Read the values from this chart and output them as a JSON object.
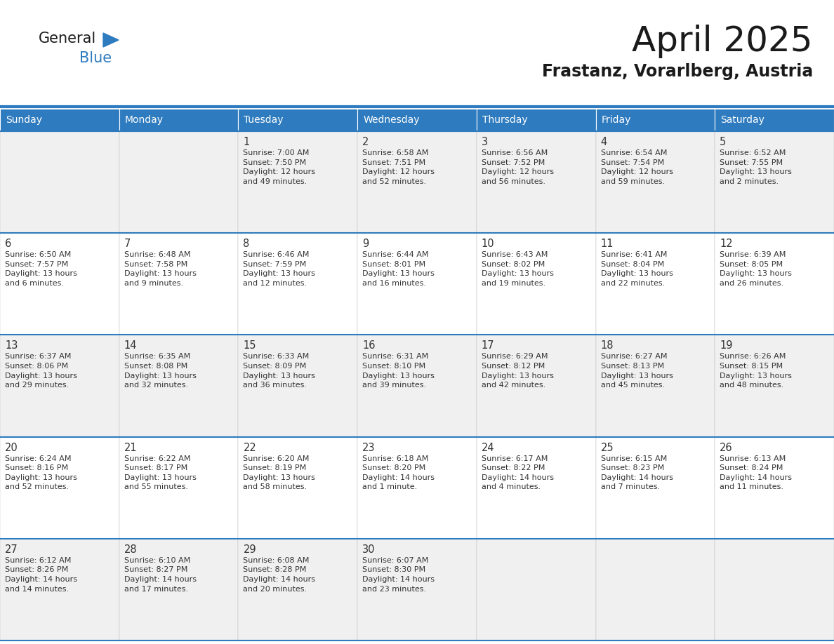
{
  "title": "April 2025",
  "subtitle": "Frastanz, Vorarlberg, Austria",
  "header_bg": "#2E7BBF",
  "header_text": "#FFFFFF",
  "row_bg_odd": "#F0F0F0",
  "row_bg_even": "#FFFFFF",
  "separator_color": "#2E7BBF",
  "cell_border_color": "#AAAAAA",
  "text_color": "#333333",
  "days_of_week": [
    "Sunday",
    "Monday",
    "Tuesday",
    "Wednesday",
    "Thursday",
    "Friday",
    "Saturday"
  ],
  "weeks": [
    [
      {
        "day": null,
        "info": null
      },
      {
        "day": null,
        "info": null
      },
      {
        "day": 1,
        "info": "Sunrise: 7:00 AM\nSunset: 7:50 PM\nDaylight: 12 hours\nand 49 minutes."
      },
      {
        "day": 2,
        "info": "Sunrise: 6:58 AM\nSunset: 7:51 PM\nDaylight: 12 hours\nand 52 minutes."
      },
      {
        "day": 3,
        "info": "Sunrise: 6:56 AM\nSunset: 7:52 PM\nDaylight: 12 hours\nand 56 minutes."
      },
      {
        "day": 4,
        "info": "Sunrise: 6:54 AM\nSunset: 7:54 PM\nDaylight: 12 hours\nand 59 minutes."
      },
      {
        "day": 5,
        "info": "Sunrise: 6:52 AM\nSunset: 7:55 PM\nDaylight: 13 hours\nand 2 minutes."
      }
    ],
    [
      {
        "day": 6,
        "info": "Sunrise: 6:50 AM\nSunset: 7:57 PM\nDaylight: 13 hours\nand 6 minutes."
      },
      {
        "day": 7,
        "info": "Sunrise: 6:48 AM\nSunset: 7:58 PM\nDaylight: 13 hours\nand 9 minutes."
      },
      {
        "day": 8,
        "info": "Sunrise: 6:46 AM\nSunset: 7:59 PM\nDaylight: 13 hours\nand 12 minutes."
      },
      {
        "day": 9,
        "info": "Sunrise: 6:44 AM\nSunset: 8:01 PM\nDaylight: 13 hours\nand 16 minutes."
      },
      {
        "day": 10,
        "info": "Sunrise: 6:43 AM\nSunset: 8:02 PM\nDaylight: 13 hours\nand 19 minutes."
      },
      {
        "day": 11,
        "info": "Sunrise: 6:41 AM\nSunset: 8:04 PM\nDaylight: 13 hours\nand 22 minutes."
      },
      {
        "day": 12,
        "info": "Sunrise: 6:39 AM\nSunset: 8:05 PM\nDaylight: 13 hours\nand 26 minutes."
      }
    ],
    [
      {
        "day": 13,
        "info": "Sunrise: 6:37 AM\nSunset: 8:06 PM\nDaylight: 13 hours\nand 29 minutes."
      },
      {
        "day": 14,
        "info": "Sunrise: 6:35 AM\nSunset: 8:08 PM\nDaylight: 13 hours\nand 32 minutes."
      },
      {
        "day": 15,
        "info": "Sunrise: 6:33 AM\nSunset: 8:09 PM\nDaylight: 13 hours\nand 36 minutes."
      },
      {
        "day": 16,
        "info": "Sunrise: 6:31 AM\nSunset: 8:10 PM\nDaylight: 13 hours\nand 39 minutes."
      },
      {
        "day": 17,
        "info": "Sunrise: 6:29 AM\nSunset: 8:12 PM\nDaylight: 13 hours\nand 42 minutes."
      },
      {
        "day": 18,
        "info": "Sunrise: 6:27 AM\nSunset: 8:13 PM\nDaylight: 13 hours\nand 45 minutes."
      },
      {
        "day": 19,
        "info": "Sunrise: 6:26 AM\nSunset: 8:15 PM\nDaylight: 13 hours\nand 48 minutes."
      }
    ],
    [
      {
        "day": 20,
        "info": "Sunrise: 6:24 AM\nSunset: 8:16 PM\nDaylight: 13 hours\nand 52 minutes."
      },
      {
        "day": 21,
        "info": "Sunrise: 6:22 AM\nSunset: 8:17 PM\nDaylight: 13 hours\nand 55 minutes."
      },
      {
        "day": 22,
        "info": "Sunrise: 6:20 AM\nSunset: 8:19 PM\nDaylight: 13 hours\nand 58 minutes."
      },
      {
        "day": 23,
        "info": "Sunrise: 6:18 AM\nSunset: 8:20 PM\nDaylight: 14 hours\nand 1 minute."
      },
      {
        "day": 24,
        "info": "Sunrise: 6:17 AM\nSunset: 8:22 PM\nDaylight: 14 hours\nand 4 minutes."
      },
      {
        "day": 25,
        "info": "Sunrise: 6:15 AM\nSunset: 8:23 PM\nDaylight: 14 hours\nand 7 minutes."
      },
      {
        "day": 26,
        "info": "Sunrise: 6:13 AM\nSunset: 8:24 PM\nDaylight: 14 hours\nand 11 minutes."
      }
    ],
    [
      {
        "day": 27,
        "info": "Sunrise: 6:12 AM\nSunset: 8:26 PM\nDaylight: 14 hours\nand 14 minutes."
      },
      {
        "day": 28,
        "info": "Sunrise: 6:10 AM\nSunset: 8:27 PM\nDaylight: 14 hours\nand 17 minutes."
      },
      {
        "day": 29,
        "info": "Sunrise: 6:08 AM\nSunset: 8:28 PM\nDaylight: 14 hours\nand 20 minutes."
      },
      {
        "day": 30,
        "info": "Sunrise: 6:07 AM\nSunset: 8:30 PM\nDaylight: 14 hours\nand 23 minutes."
      },
      {
        "day": null,
        "info": null
      },
      {
        "day": null,
        "info": null
      },
      {
        "day": null,
        "info": null
      }
    ]
  ],
  "logo_general_color": "#1A1A1A",
  "logo_blue_color": "#2E7BBF",
  "logo_triangle_color": "#2E7BBF",
  "fig_width": 11.88,
  "fig_height": 9.18,
  "dpi": 100
}
